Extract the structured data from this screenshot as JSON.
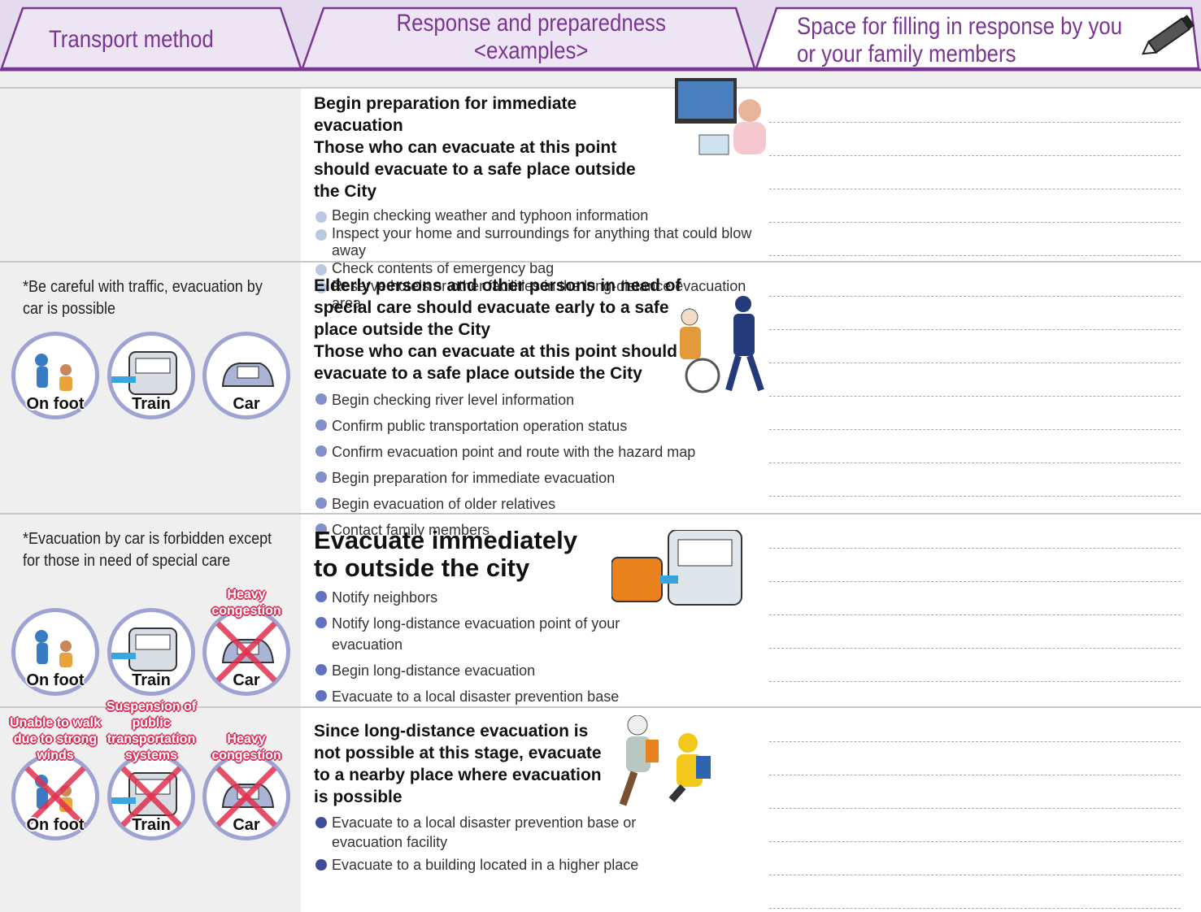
{
  "header": {
    "columns": [
      "Transport method",
      "Response and preparedness <examples>",
      "Space for filling in response by you or your family members"
    ]
  },
  "rows": [
    {
      "bullet_color": "#b9c9e3",
      "response": {
        "heading": [
          "Begin preparation for immediate evacuation",
          "Those who can evacuate at this point should evacuate to a safe place outside the City"
        ],
        "bullets": [
          "Begin checking weather and typhoon information",
          "Inspect your home and surroundings for anything that could blow away",
          "Check contents of emergency bag",
          "Reserve hotels or other facilities in the long-distance evacuation area"
        ]
      }
    },
    {
      "bullet_color": "#8292c8",
      "transport": {
        "note": "*Be careful with traffic, evacuation by car is possible",
        "modes": [
          {
            "label": "On foot"
          },
          {
            "label": "Train"
          },
          {
            "label": "Car"
          }
        ]
      },
      "response": {
        "heading": [
          "Elderly persons and other persons in need of special care should evacuate early to a safe place outside the City",
          "Those who can evacuate at this point should evacuate to a safe place outside the City"
        ],
        "bullets": [
          "Begin checking river level information",
          "Confirm public transportation operation status",
          "Confirm evacuation point and route with the hazard map",
          "Begin preparation for immediate evacuation",
          "Begin evacuation of older relatives",
          "Contact family members"
        ]
      }
    },
    {
      "bullet_color": "#5f73c2",
      "transport": {
        "note": "*Evacuation by car is forbidden except for those in need of special care",
        "modes": [
          {
            "label": "On foot"
          },
          {
            "label": "Train"
          },
          {
            "label": "Car",
            "status": "Heavy congestion"
          }
        ]
      },
      "response": {
        "heading": [
          "Evacuate immediately to outside the city"
        ],
        "bullets": [
          "Notify neighbors",
          "Notify long-distance evacuation point of your evacuation",
          "Begin long-distance evacuation",
          "Evacuate to a local disaster prevention base"
        ]
      }
    },
    {
      "bullet_color": "#3f4c99",
      "transport": {
        "modes": [
          {
            "label": "On foot",
            "status": "Unable to walk due to strong winds"
          },
          {
            "label": "Train",
            "status": "Suspension of public transportation systems"
          },
          {
            "label": "Car",
            "status": "Heavy congestion"
          }
        ]
      },
      "response": {
        "heading": [
          "Since long-distance evacuation is not possible at this stage, evacuate to a nearby place where evacuation is possible"
        ],
        "bullets": [
          "Evacuate to a local disaster prevention base or evacuation facility",
          "Evacuate to a building located in a higher place"
        ]
      }
    }
  ]
}
